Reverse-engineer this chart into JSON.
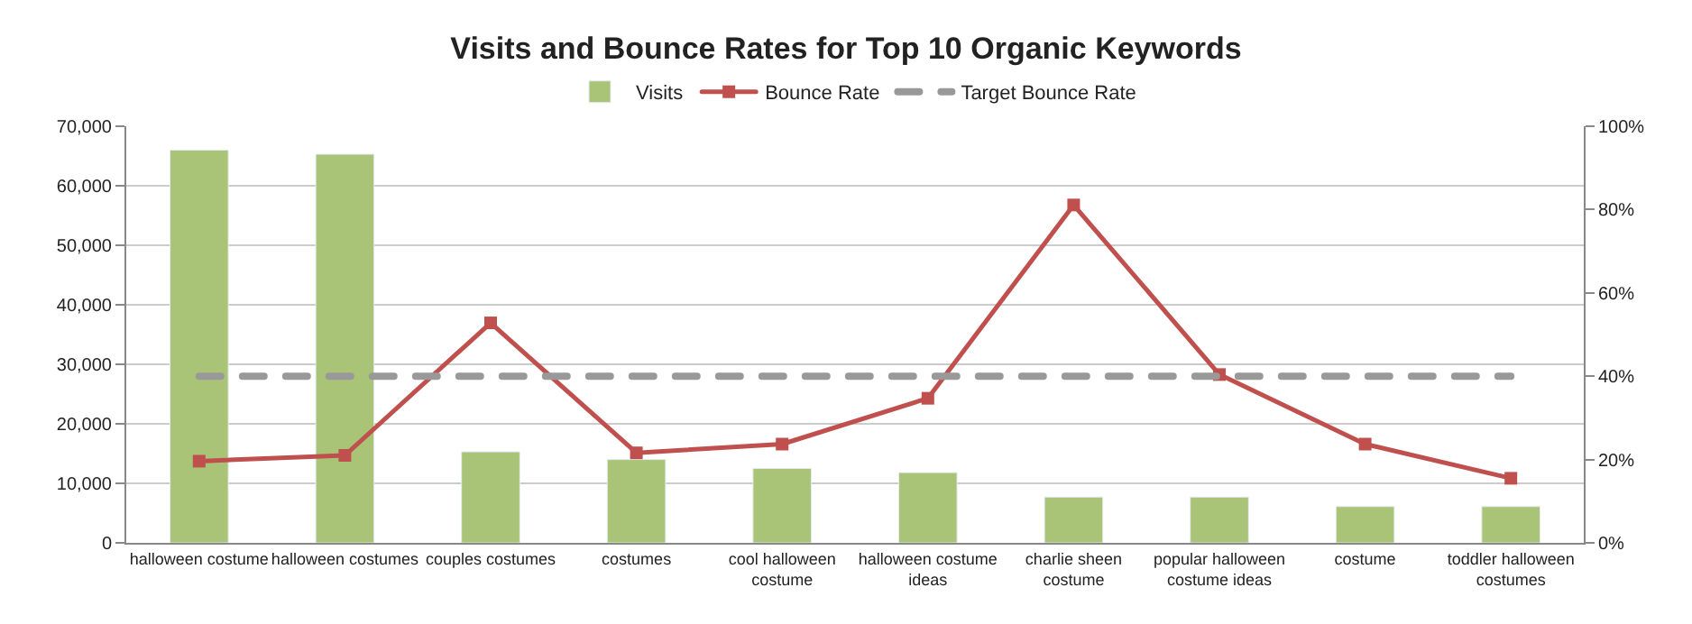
{
  "chart_data": {
    "type": "bar",
    "title": "Visits and Bounce Rates for Top 10 Organic Keywords",
    "categories": [
      "halloween costume",
      "halloween costumes",
      "couples costumes",
      "costumes",
      "cool halloween costume",
      "halloween costume ideas",
      "charlie sheen costume",
      "popular halloween costume ideas",
      "costume",
      "toddler halloween costumes"
    ],
    "series": [
      {
        "name": "Visits",
        "type": "bar",
        "color": "#a9c476",
        "values": [
          66000,
          65300,
          15300,
          14000,
          12500,
          11800,
          7700,
          7700,
          6100,
          6100
        ]
      },
      {
        "name": "Bounce Rate",
        "type": "line",
        "axis": "y2",
        "color": "#c0504d",
        "marker": "square",
        "line_style": "solid",
        "values": [
          19.6,
          21.0,
          52.8,
          21.6,
          23.7,
          34.7,
          81.1,
          40.4,
          23.7,
          15.5
        ]
      },
      {
        "name": "Target Bounce Rate",
        "type": "line",
        "axis": "y2",
        "color": "#999999",
        "marker": "none",
        "line_style": "dashed",
        "values": [
          40,
          40,
          40,
          40,
          40,
          40,
          40,
          40,
          40,
          40
        ]
      }
    ],
    "ylim": [
      0,
      70000
    ],
    "yticks": [
      {
        "value": 0,
        "label": "0"
      },
      {
        "value": 10000,
        "label": "10,000"
      },
      {
        "value": 20000,
        "label": "20,000"
      },
      {
        "value": 30000,
        "label": "30,000"
      },
      {
        "value": 40000,
        "label": "40,000"
      },
      {
        "value": 50000,
        "label": "50,000"
      },
      {
        "value": 60000,
        "label": "60,000"
      },
      {
        "value": 70000,
        "label": "70,000"
      }
    ],
    "y2lim": [
      0,
      100
    ],
    "y2ticks": [
      {
        "value": 0,
        "label": "0%"
      },
      {
        "value": 20,
        "label": "20%"
      },
      {
        "value": 40,
        "label": "40%"
      },
      {
        "value": 60,
        "label": "60%"
      },
      {
        "value": 80,
        "label": "80%"
      },
      {
        "value": 100,
        "label": "100%"
      }
    ],
    "grid": "y",
    "legend": "top"
  }
}
